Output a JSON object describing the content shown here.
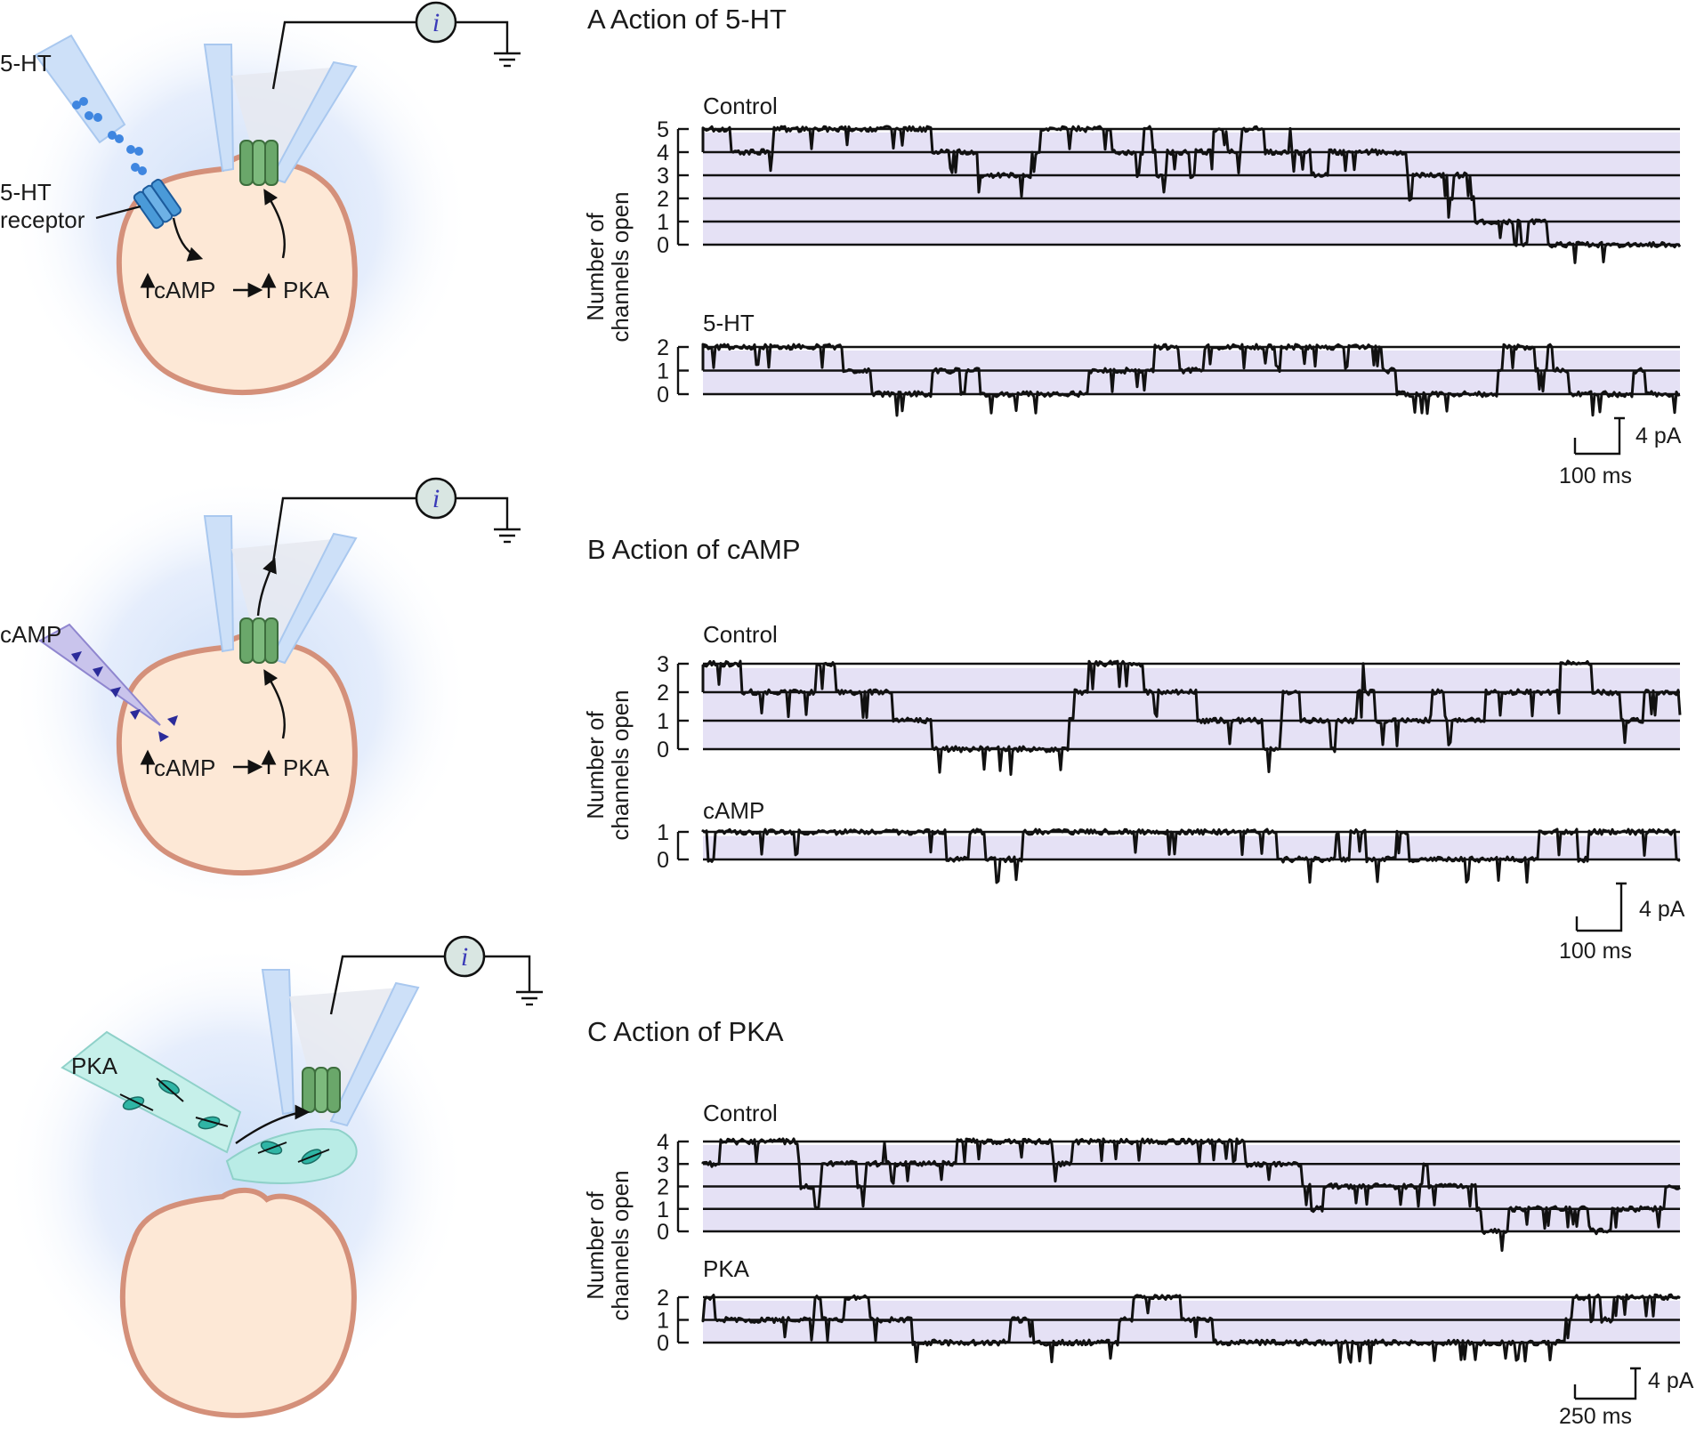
{
  "diagram": {
    "panel_a": {
      "left_labels": [
        "5-HT",
        "5-HT",
        "receptor"
      ],
      "cell_labels": {
        "camp": "cAMP",
        "pka": "PKA"
      },
      "meter": "i"
    },
    "panel_b": {
      "left_labels": [
        "cAMP"
      ],
      "cell_labels": {
        "camp": "cAMP",
        "pka": "PKA"
      },
      "meter": "i"
    },
    "panel_c": {
      "left_labels": [
        "PKA"
      ],
      "meter": "i"
    }
  },
  "chart_data": [
    {
      "type": "line",
      "title": "A  Action of 5-HT",
      "ylabel": [
        "Number of",
        "channels open"
      ],
      "traces": [
        {
          "name": "Control",
          "levels": [
            "5",
            "4",
            "3",
            "2",
            "1",
            "0"
          ],
          "ylim": [
            0,
            5
          ]
        },
        {
          "name": "5-HT",
          "levels": [
            "2",
            "1",
            "0"
          ],
          "ylim": [
            0,
            2
          ]
        }
      ],
      "scalebar": {
        "current": "4 pA",
        "time": "100 ms"
      }
    },
    {
      "type": "line",
      "title": "B  Action of cAMP",
      "ylabel": [
        "Number of",
        "channels open"
      ],
      "traces": [
        {
          "name": "Control",
          "levels": [
            "3",
            "2",
            "1",
            "0"
          ],
          "ylim": [
            0,
            3
          ]
        },
        {
          "name": "cAMP",
          "levels": [
            "1",
            "0"
          ],
          "ylim": [
            0,
            1
          ]
        }
      ],
      "scalebar": {
        "current": "4 pA",
        "time": "100 ms"
      }
    },
    {
      "type": "line",
      "title": "C  Action of PKA",
      "ylabel": [
        "Number of",
        "channels open"
      ],
      "traces": [
        {
          "name": "Control",
          "levels": [
            "4",
            "3",
            "2",
            "1",
            "0"
          ],
          "ylim": [
            0,
            4
          ]
        },
        {
          "name": "PKA",
          "levels": [
            "2",
            "1",
            "0"
          ],
          "ylim": [
            0,
            2
          ]
        }
      ],
      "scalebar": {
        "current": "4 pA",
        "time": "250 ms"
      }
    }
  ]
}
